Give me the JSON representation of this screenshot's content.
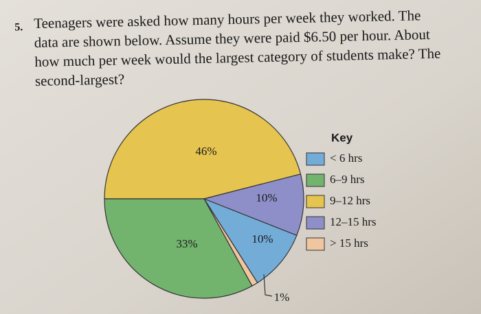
{
  "question": {
    "number": "5.",
    "lines": [
      "Teenagers were asked how many hours per week they worked. The",
      "data are shown below. Assume they were paid $6.50 per hour. About",
      "how much per week would the largest category of students make? The",
      "second-largest?"
    ]
  },
  "chart_data": {
    "type": "pie",
    "legend_title": "Key",
    "categories": [
      "< 6 hrs",
      "6–9 hrs",
      "9–12 hrs",
      "12–15 hrs",
      "> 15 hrs"
    ],
    "values": [
      10,
      33,
      46,
      10,
      1
    ],
    "value_labels": [
      "10%",
      "33%",
      "46%",
      "10%",
      "1%"
    ],
    "colors": [
      "#74acd8",
      "#72b36e",
      "#e6c450",
      "#8e8fc9",
      "#f0c6a0"
    ],
    "legend": "right"
  }
}
